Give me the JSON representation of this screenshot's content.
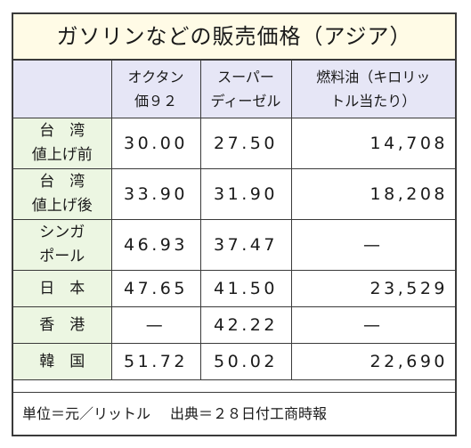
{
  "title": "ガソリンなどの販売価格（アジア）",
  "headers": {
    "octane": [
      "オクタン",
      "価９２"
    ],
    "diesel": [
      "スーパー",
      "ディーゼル"
    ],
    "fuel_oil": [
      "燃料油（キロリッ",
      "トル当たり）"
    ]
  },
  "rows": [
    {
      "label": [
        "台　湾",
        "値上げ前"
      ],
      "octane": "30.00",
      "diesel": "27.50",
      "fuel_oil": "14,708"
    },
    {
      "label": [
        "台　湾",
        "値上げ後"
      ],
      "octane": "33.90",
      "diesel": "31.90",
      "fuel_oil": "18,208"
    },
    {
      "label": [
        "シンガ",
        "ポール"
      ],
      "octane": "46.93",
      "diesel": "37.47",
      "fuel_oil": "—"
    },
    {
      "label": [
        "日　本"
      ],
      "octane": "47.65",
      "diesel": "41.50",
      "fuel_oil": "23,529"
    },
    {
      "label": [
        "香　港"
      ],
      "octane": "—",
      "diesel": "42.22",
      "fuel_oil": "—"
    },
    {
      "label": [
        "韓　国"
      ],
      "octane": "51.72",
      "diesel": "50.02",
      "fuel_oil": "22,690"
    }
  ],
  "footnote": {
    "unit": "単位＝元／リットル",
    "source": "出典＝２８日付工商時報"
  },
  "colors": {
    "title_bg": "#fffbe6",
    "header_bg": "#e6e6f6",
    "label_bg": "#ecf6e2",
    "border": "#3a3a3a"
  }
}
